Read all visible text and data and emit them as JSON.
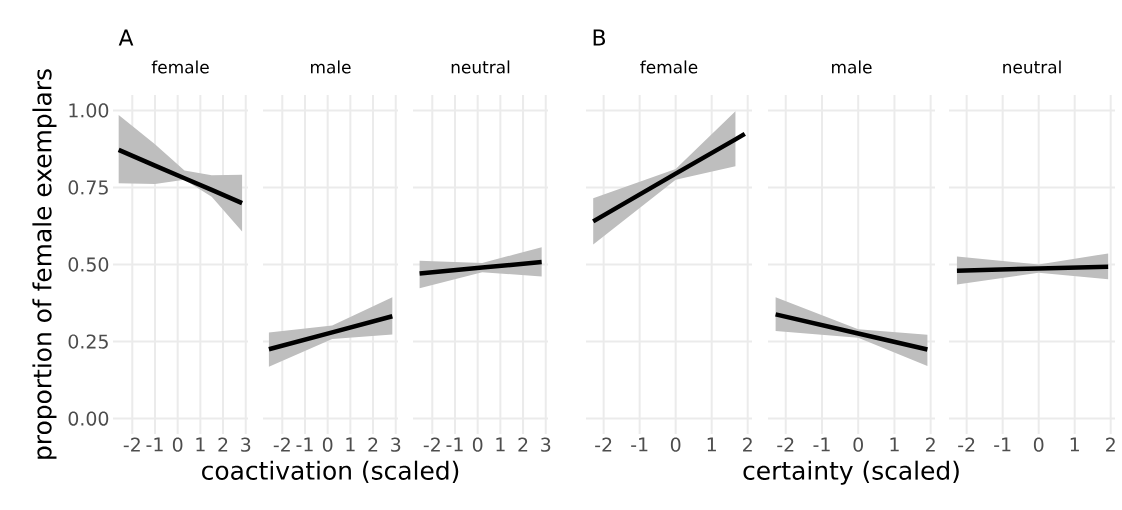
{
  "chart_data": [
    {
      "type": "line",
      "title": "female",
      "ylabel": "proportion of female exemplars",
      "annotations": [
        "A"
      ],
      "xlim": [
        -2.85,
        3.1
      ],
      "ylim": [
        -0.05,
        1.05
      ],
      "xticks": [
        -2,
        -1,
        0,
        1,
        2,
        3
      ],
      "yticks": [
        {
          "value": 0,
          "label": "0.00"
        },
        {
          "value": 0.25,
          "label": "0.25"
        },
        {
          "value": 0.5,
          "label": "0.50"
        },
        {
          "value": 0.75,
          "label": "0.75"
        },
        {
          "value": 1,
          "label": "1.00"
        }
      ],
      "grid": true,
      "series": [
        {
          "color": "#000000",
          "x": [
            -2.6,
            -1,
            0.3,
            1.5,
            2.84
          ],
          "values": [
            0.872,
            0.821,
            0.78,
            0.742,
            0.699
          ],
          "lower": [
            0.764,
            0.761,
            0.775,
            0.72,
            0.607
          ],
          "upper": [
            0.985,
            0.89,
            0.805,
            0.79,
            0.791
          ]
        }
      ]
    },
    {
      "type": "line",
      "title": "male",
      "xlabel": "coactivation (scaled)",
      "xlim": [
        -2.85,
        3.1
      ],
      "ylim": [
        -0.05,
        1.05
      ],
      "xticks": [
        -2,
        -1,
        0,
        1,
        2,
        3
      ],
      "grid": true,
      "tick_labels": "x",
      "series": [
        {
          "color": "#000000",
          "x": [
            -2.59,
            0.2,
            2.85
          ],
          "values": [
            0.225,
            0.28,
            0.332
          ],
          "lower": [
            0.168,
            0.258,
            0.273
          ],
          "upper": [
            0.279,
            0.302,
            0.394
          ]
        }
      ]
    },
    {
      "type": "line",
      "title": "neutral",
      "xlim": [
        -2.85,
        3.1
      ],
      "ylim": [
        -0.05,
        1.05
      ],
      "xticks": [
        -2,
        -1,
        0,
        1,
        2,
        3
      ],
      "grid": true,
      "tick_labels": "x",
      "series": [
        {
          "color": "#000000",
          "x": [
            -2.56,
            0.2,
            2.82
          ],
          "values": [
            0.471,
            0.49,
            0.508
          ],
          "lower": [
            0.423,
            0.475,
            0.461
          ],
          "upper": [
            0.512,
            0.505,
            0.556
          ]
        }
      ]
    },
    {
      "type": "line",
      "title": "female",
      "annotations": [
        "B"
      ],
      "xlim": [
        -2.49,
        2.12
      ],
      "ylim": [
        -0.05,
        1.05
      ],
      "xticks": [
        -2,
        -1,
        0,
        1,
        2
      ],
      "grid": true,
      "tick_labels": "x",
      "series": [
        {
          "color": "#000000",
          "x": [
            -2.29,
            0,
            1.66,
            1.92
          ],
          "values": [
            0.64,
            0.795,
            0.906,
            0.924
          ],
          "lower": [
            0.565,
            0.775,
            0.819,
            null
          ],
          "upper": [
            0.715,
            0.81,
            0.997,
            null
          ]
        }
      ]
    },
    {
      "type": "line",
      "title": "male",
      "xlabel": "certainty (scaled)",
      "xlim": [
        -2.49,
        2.12
      ],
      "ylim": [
        -0.05,
        1.05
      ],
      "xticks": [
        -2,
        -1,
        0,
        1,
        2
      ],
      "grid": true,
      "tick_labels": "x",
      "series": [
        {
          "color": "#000000",
          "x": [
            -2.28,
            0,
            1.91
          ],
          "values": [
            0.338,
            0.276,
            0.224
          ],
          "lower": [
            0.284,
            0.262,
            0.171
          ],
          "upper": [
            0.394,
            0.29,
            0.272
          ]
        }
      ]
    },
    {
      "type": "line",
      "title": "neutral",
      "xlim": [
        -2.49,
        2.12
      ],
      "ylim": [
        -0.05,
        1.05
      ],
      "xticks": [
        -2,
        -1,
        0,
        1,
        2
      ],
      "grid": true,
      "tick_labels": "x",
      "series": [
        {
          "color": "#000000",
          "x": [
            -2.27,
            0,
            1.93
          ],
          "values": [
            0.48,
            0.487,
            0.493
          ],
          "lower": [
            0.435,
            0.473,
            0.452
          ],
          "upper": [
            0.526,
            0.5,
            0.536
          ]
        }
      ]
    }
  ]
}
